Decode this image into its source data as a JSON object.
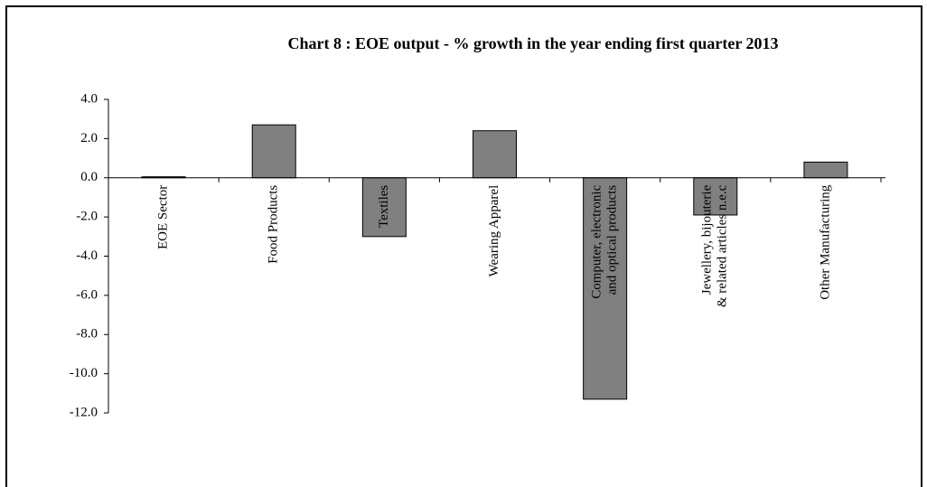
{
  "chart_data": {
    "type": "bar",
    "title": "Chart 8 : EOE output - % growth in the year ending first quarter 2013",
    "categories": [
      "EOE Sector",
      "Food Products",
      "Textiles",
      "Wearing Apparel",
      [
        "Computer, electronic",
        "and optical products"
      ],
      [
        "Jewellery, bijouterie",
        "& related articles n.e.c"
      ],
      "Other Manufacturing"
    ],
    "values": [
      0.05,
      2.7,
      -3.0,
      2.4,
      -11.3,
      -1.9,
      0.8
    ],
    "color": "#808080",
    "ylim": [
      -12,
      4
    ],
    "yticks": [
      {
        "value": 4,
        "label": "4.0"
      },
      {
        "value": 2,
        "label": "2.0"
      },
      {
        "value": 0,
        "label": "0.0"
      },
      {
        "value": -2,
        "label": "-2.0"
      },
      {
        "value": -4,
        "label": "-4.0"
      },
      {
        "value": -6,
        "label": "-6.0"
      },
      {
        "value": -8,
        "label": "-8.0"
      },
      {
        "value": -10,
        "label": "-10.0"
      },
      {
        "value": -12,
        "label": "-12.0"
      }
    ]
  }
}
